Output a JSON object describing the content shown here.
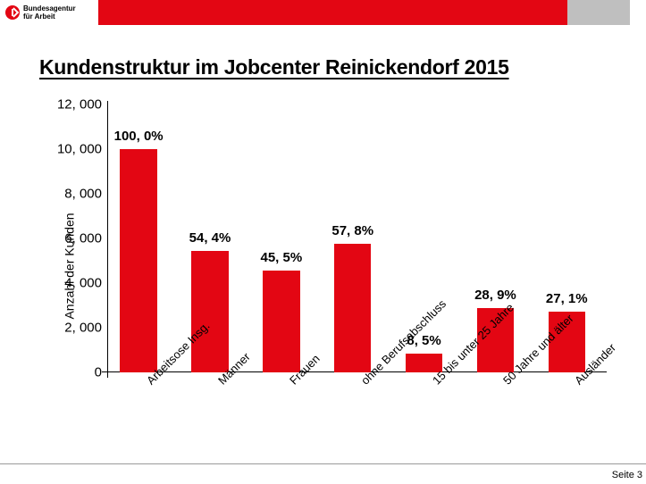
{
  "header": {
    "logo_line1": "Bundesagentur",
    "logo_line2": "für Arbeit"
  },
  "title": "Kundenstruktur im Jobcenter Reinickendorf 2015",
  "chart": {
    "type": "bar",
    "ylabel": "Anzahl der Kunden",
    "ylim": [
      0,
      12000
    ],
    "ytick_step": 2000,
    "yticks": [
      "0",
      "2, 000",
      "4, 000",
      "6, 000",
      "8, 000",
      "10, 000",
      "12, 000"
    ],
    "bar_color": "#e30613",
    "label_fontsize": 15,
    "bars": [
      {
        "category": "Arbeitsose Insg.",
        "value": 10000,
        "label": "100, 0%"
      },
      {
        "category": "Männer",
        "value": 5440,
        "label": "54, 4%"
      },
      {
        "category": "Frauen",
        "value": 4550,
        "label": "45, 5%"
      },
      {
        "category": "ohne Berufsabschluss",
        "value": 5780,
        "label": "57, 8%"
      },
      {
        "category": "15 bis unter 25 Jahre",
        "value": 850,
        "label": "8, 5%"
      },
      {
        "category": "50 Jahre und älter",
        "value": 2890,
        "label": "28, 9%"
      },
      {
        "category": "Ausländer",
        "value": 2710,
        "label": "27, 1%"
      }
    ],
    "background_color": "#ffffff"
  },
  "footer": {
    "page": "Seite 3"
  }
}
